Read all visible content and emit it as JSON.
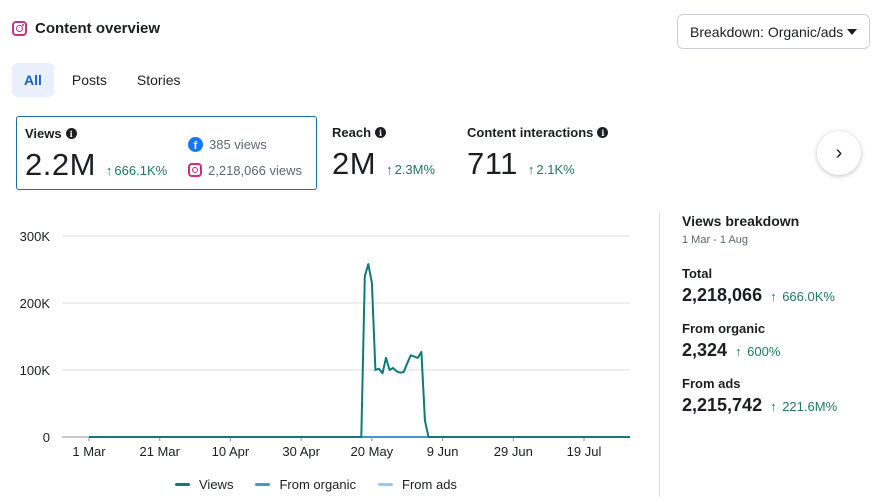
{
  "header": {
    "title": "Content overview",
    "icon": "instagram-icon"
  },
  "dropdown": {
    "label": "Breakdown: Organic/ads"
  },
  "tabs": [
    {
      "label": "All",
      "active": true
    },
    {
      "label": "Posts",
      "active": false
    },
    {
      "label": "Stories",
      "active": false
    }
  ],
  "metrics": {
    "views": {
      "label": "Views",
      "value": "2.2M",
      "change": "666.1K%"
    },
    "reach": {
      "label": "Reach",
      "value": "2M",
      "change": "2.3M%"
    },
    "interactions": {
      "label": "Content interactions",
      "value": "711",
      "change": "2.1K%"
    }
  },
  "platforms": {
    "facebook": {
      "icon": "facebook-icon",
      "text": "385 views"
    },
    "instagram": {
      "icon": "instagram-icon",
      "text": "2,218,066 views"
    }
  },
  "breakdown": {
    "title": "Views breakdown",
    "range": "1 Mar - 1 Aug",
    "total": {
      "label": "Total",
      "value": "2,218,066",
      "change": "666.0K%"
    },
    "organic": {
      "label": "From organic",
      "value": "2,324",
      "change": "600%"
    },
    "ads": {
      "label": "From ads",
      "value": "2,215,742",
      "change": "221.6M%"
    }
  },
  "colors": {
    "views": "#0f7a7a",
    "organic": "#3d9ad1",
    "ads": "#93cbf1",
    "positive": "#1e7a5a"
  },
  "chart_data": {
    "type": "line",
    "x_tick_labels": [
      "1 Mar",
      "21 Mar",
      "10 Apr",
      "30 Apr",
      "20 May",
      "9 Jun",
      "29 Jun",
      "19 Jul"
    ],
    "y_tick_labels": [
      "0",
      "100K",
      "200K",
      "300K"
    ],
    "ylim": [
      0,
      300000
    ],
    "xlim_days": [
      0,
      153
    ],
    "grid": true,
    "legend_position": "bottom",
    "series": [
      {
        "name": "Views",
        "color": "#0f7a7a",
        "points": [
          [
            0,
            0
          ],
          [
            77,
            0
          ],
          [
            78,
            240000
          ],
          [
            79,
            258000
          ],
          [
            80,
            230000
          ],
          [
            81,
            100000
          ],
          [
            82,
            102000
          ],
          [
            83,
            95000
          ],
          [
            84,
            118000
          ],
          [
            85,
            100000
          ],
          [
            86,
            103000
          ],
          [
            87,
            98000
          ],
          [
            88,
            96000
          ],
          [
            89,
            97000
          ],
          [
            90,
            110000
          ],
          [
            91,
            122000
          ],
          [
            92,
            120000
          ],
          [
            93,
            118000
          ],
          [
            94,
            127000
          ],
          [
            95,
            25000
          ],
          [
            96,
            0
          ],
          [
            153,
            0
          ]
        ]
      },
      {
        "name": "From organic",
        "color": "#3d9ad1",
        "points": [
          [
            0,
            0
          ],
          [
            153,
            0
          ]
        ]
      },
      {
        "name": "From ads",
        "color": "#93cbf1",
        "points": [
          [
            0,
            0
          ],
          [
            77,
            0
          ],
          [
            96,
            0
          ],
          [
            153,
            0
          ]
        ]
      }
    ]
  }
}
